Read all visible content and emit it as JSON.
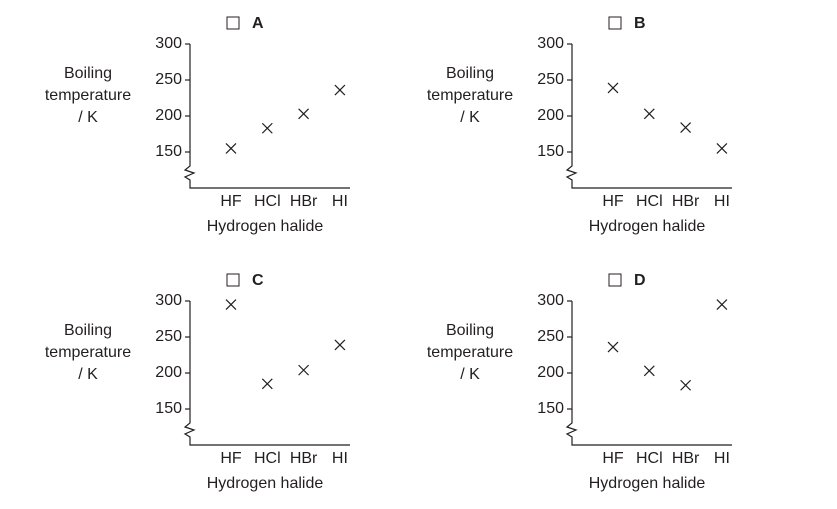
{
  "chart_data": [
    {
      "type": "scatter",
      "title": "A",
      "ylabel": "Boiling temperature / K",
      "xlabel": "Hydrogen halide",
      "categories": [
        "HF",
        "HCl",
        "HBr",
        "HI"
      ],
      "values": [
        155,
        183,
        203,
        236
      ],
      "ylim": [
        100,
        300
      ],
      "yticks": [
        150,
        200,
        250,
        300
      ],
      "marker": "x",
      "color": "#231f20"
    },
    {
      "type": "scatter",
      "title": "B",
      "ylabel": "Boiling temperature / K",
      "xlabel": "Hydrogen halide",
      "categories": [
        "HF",
        "HCl",
        "HBr",
        "HI"
      ],
      "values": [
        239,
        203,
        184,
        155
      ],
      "ylim": [
        100,
        300
      ],
      "yticks": [
        150,
        200,
        250,
        300
      ],
      "marker": "x",
      "color": "#231f20"
    },
    {
      "type": "scatter",
      "title": "C",
      "ylabel": "Boiling temperature / K",
      "xlabel": "Hydrogen halide",
      "categories": [
        "HF",
        "HCl",
        "HBr",
        "HI"
      ],
      "values": [
        295,
        185,
        204,
        239
      ],
      "ylim": [
        100,
        300
      ],
      "yticks": [
        150,
        200,
        250,
        300
      ],
      "marker": "x",
      "color": "#231f20"
    },
    {
      "type": "scatter",
      "title": "D",
      "ylabel": "Boiling temperature / K",
      "xlabel": "Hydrogen halide",
      "categories": [
        "HF",
        "HCl",
        "HBr",
        "HI"
      ],
      "values": [
        236,
        203,
        183,
        295
      ],
      "ylim": [
        100,
        300
      ],
      "yticks": [
        150,
        200,
        250,
        300
      ],
      "marker": "x",
      "color": "#231f20"
    }
  ]
}
